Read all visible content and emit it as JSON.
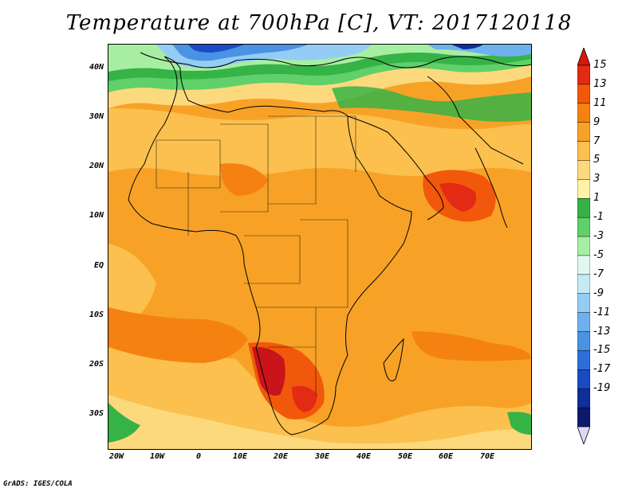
{
  "title": "Temperature at 700hPa [C], VT: 2017120118",
  "credit": "GrADS: IGES/COLA",
  "lat_labels": [
    "40N",
    "30N",
    "20N",
    "10N",
    "EQ",
    "10S",
    "20S",
    "30S"
  ],
  "lon_labels": [
    "20W",
    "10W",
    "0",
    "10E",
    "20E",
    "30E",
    "40E",
    "50E",
    "60E",
    "70E"
  ],
  "colorbar": {
    "labels": [
      "15",
      "13",
      "11",
      "9",
      "7",
      "5",
      "3",
      "1",
      "-1",
      "-3",
      "-5",
      "-7",
      "-9",
      "-11",
      "-13",
      "-15",
      "-17",
      "-19"
    ],
    "colors": [
      "#e22a14",
      "#f2580b",
      "#f58210",
      "#f7a227",
      "#fbc04e",
      "#fdd97e",
      "#fef3a6",
      "#36b346",
      "#5fd06a",
      "#a8eea2",
      "#dff8f0",
      "#c4eaf8",
      "#93cdf5",
      "#6fb1ee",
      "#4a92e3",
      "#2f6ed8",
      "#1b4bc4",
      "#0e2f9a",
      "#0a1a6e"
    ],
    "top_arrow": "#d7190c",
    "bottom_arrow": "#ddd9f5"
  },
  "palette": {
    "coast": "#000000",
    "warm_core": "#c8141a"
  }
}
